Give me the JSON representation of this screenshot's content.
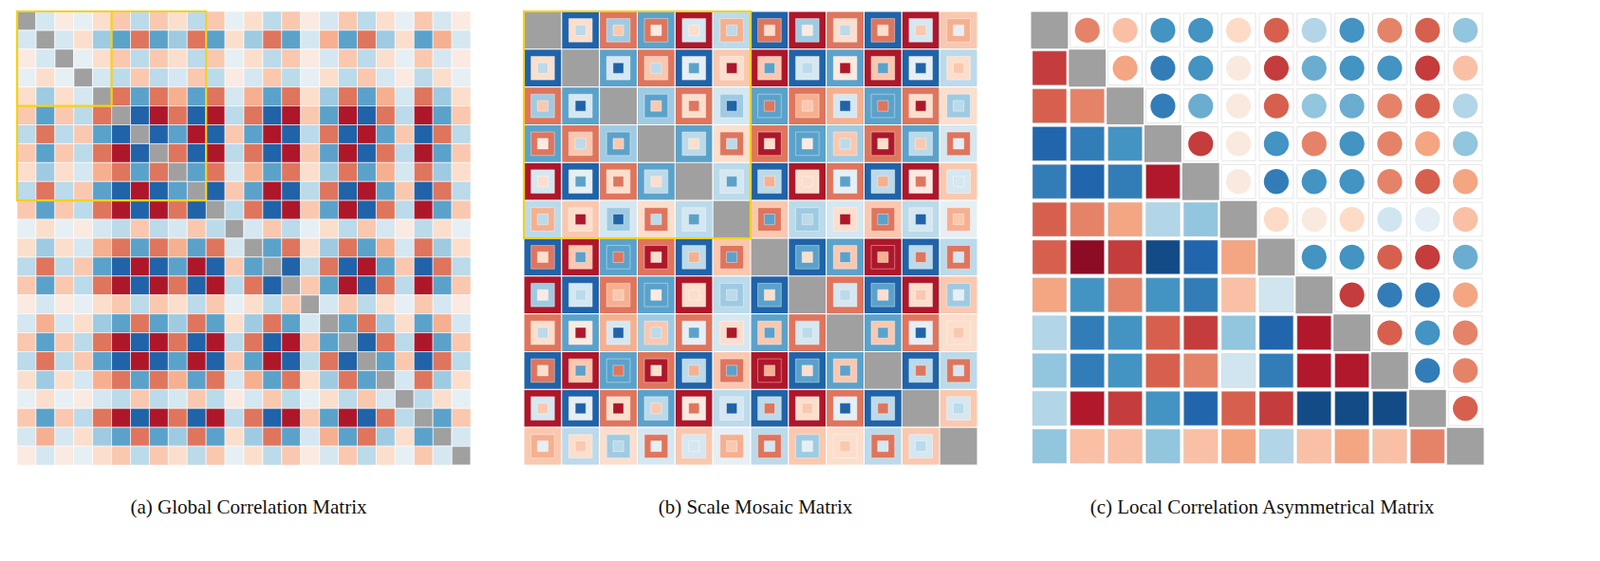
{
  "chart_data": [
    {
      "type": "heatmap",
      "title": "(a) Global Correlation Matrix",
      "tick_labels": false,
      "color_range": [
        -1,
        1
      ],
      "colorscale": [
        "#053061",
        "#2166ac",
        "#4393c3",
        "#92c5de",
        "#d1e5f0",
        "#f7f7f7",
        "#fddbc7",
        "#f4a582",
        "#d6604d",
        "#b2182b",
        "#67001f"
      ],
      "highlights": [
        [
          0,
          4
        ],
        [
          0,
          9
        ]
      ],
      "lower_triangle": [
        [],
        [
          -0.18
        ],
        [
          0.09,
          -0.18
        ],
        [
          -0.09,
          0.18,
          -0.09
        ],
        [
          0.18,
          -0.36,
          0.18,
          -0.18
        ],
        [
          0.27,
          -0.54,
          0.27,
          -0.27,
          0.54
        ],
        [
          -0.27,
          0.54,
          -0.27,
          0.27,
          -0.54,
          -0.81
        ],
        [
          0.27,
          -0.54,
          0.27,
          -0.27,
          0.54,
          0.81,
          -0.81
        ],
        [
          0.18,
          -0.36,
          0.18,
          -0.18,
          0.36,
          0.54,
          -0.54,
          0.54
        ],
        [
          -0.27,
          0.54,
          -0.27,
          0.27,
          -0.54,
          -0.81,
          0.81,
          -0.81,
          -0.54
        ],
        [
          0.27,
          -0.54,
          0.27,
          -0.27,
          0.54,
          0.81,
          -0.81,
          0.81,
          0.54,
          -0.81
        ],
        [
          -0.09,
          0.18,
          -0.09,
          0.09,
          -0.18,
          -0.27,
          0.27,
          -0.27,
          -0.18,
          0.27,
          -0.27
        ],
        [
          0.18,
          -0.36,
          0.18,
          -0.18,
          0.36,
          0.54,
          -0.54,
          0.54,
          0.36,
          -0.54,
          0.54,
          -0.18
        ],
        [
          -0.27,
          0.54,
          -0.27,
          0.27,
          -0.54,
          -0.81,
          0.81,
          -0.81,
          -0.54,
          0.81,
          -0.81,
          0.27,
          -0.54
        ],
        [
          0.27,
          -0.54,
          0.27,
          -0.27,
          0.54,
          0.81,
          -0.81,
          0.81,
          0.54,
          -0.81,
          0.81,
          -0.27,
          0.54,
          -0.81
        ],
        [
          0.09,
          -0.18,
          0.09,
          -0.09,
          0.18,
          0.27,
          -0.27,
          0.27,
          0.18,
          -0.27,
          0.27,
          -0.09,
          0.18,
          -0.27,
          0.27
        ],
        [
          -0.18,
          0.36,
          -0.18,
          0.18,
          -0.36,
          -0.54,
          0.54,
          -0.54,
          -0.36,
          0.54,
          -0.54,
          0.18,
          -0.36,
          0.54,
          -0.54,
          -0.18
        ],
        [
          0.27,
          -0.54,
          0.27,
          -0.27,
          0.54,
          0.81,
          -0.81,
          0.81,
          0.54,
          -0.81,
          0.81,
          -0.27,
          0.54,
          -0.81,
          0.81,
          0.27,
          -0.54
        ],
        [
          -0.27,
          0.54,
          -0.27,
          0.27,
          -0.54,
          -0.81,
          0.81,
          -0.81,
          -0.54,
          0.81,
          -0.81,
          0.27,
          -0.54,
          0.81,
          -0.81,
          -0.27,
          0.54,
          -0.81
        ],
        [
          0.18,
          -0.36,
          0.18,
          -0.18,
          0.36,
          0.54,
          -0.54,
          0.54,
          0.36,
          -0.54,
          0.54,
          -0.18,
          0.36,
          -0.54,
          0.54,
          0.18,
          -0.36,
          0.54,
          -0.54
        ],
        [
          -0.09,
          0.18,
          -0.09,
          0.09,
          -0.18,
          -0.27,
          0.27,
          -0.27,
          -0.18,
          0.27,
          -0.27,
          0.09,
          -0.18,
          0.27,
          -0.27,
          -0.09,
          0.18,
          -0.27,
          0.27,
          -0.18
        ],
        [
          0.27,
          -0.54,
          0.27,
          -0.27,
          0.54,
          0.81,
          -0.81,
          0.81,
          0.54,
          -0.81,
          0.81,
          -0.27,
          0.54,
          -0.81,
          0.81,
          0.27,
          -0.54,
          0.81,
          -0.81,
          0.54,
          -0.27
        ],
        [
          -0.18,
          0.36,
          -0.18,
          0.18,
          -0.36,
          -0.54,
          0.54,
          -0.54,
          -0.36,
          0.54,
          -0.54,
          0.18,
          -0.36,
          0.54,
          -0.54,
          -0.18,
          0.36,
          -0.54,
          0.54,
          -0.36,
          0.18,
          -0.54
        ],
        [
          0.09,
          -0.18,
          0.09,
          -0.09,
          0.18,
          0.27,
          -0.27,
          0.27,
          0.18,
          -0.27,
          0.27,
          -0.09,
          0.18,
          -0.27,
          0.27,
          0.09,
          -0.18,
          0.27,
          -0.27,
          0.18,
          -0.09,
          0.27,
          -0.18
        ]
      ]
    },
    {
      "type": "mosaic",
      "title": "(b) Scale Mosaic Matrix",
      "tick_labels": false,
      "color_range": [
        -1,
        1
      ],
      "colorscale": [
        "#053061",
        "#2166ac",
        "#4393c3",
        "#92c5de",
        "#d1e5f0",
        "#f7f7f7",
        "#fddbc7",
        "#f4a582",
        "#d6604d",
        "#b2182b",
        "#67001f"
      ],
      "highlights": [
        [
          0,
          5
        ]
      ],
      "lower_triangle": [
        [],
        [
          [
            -0.81,
            0.18,
            -0.27
          ]
        ],
        [
          [
            0.54,
            -0.36,
            0.27
          ],
          [
            -0.54,
            -0.18,
            -0.81
          ]
        ],
        [
          [
            -0.54,
            0.54,
            0.09
          ],
          [
            0.54,
            0.27,
            -0.27
          ],
          [
            -0.36,
            -0.54,
            0.27
          ]
        ],
        [
          [
            0.81,
            -0.18,
            0.18
          ],
          [
            -0.81,
            -0.09,
            -0.54
          ],
          [
            0.54,
            0.18,
            0.54
          ],
          [
            -0.54,
            -0.27,
            0.18
          ]
        ],
        [
          [
            -0.27,
            0.36,
            -0.27
          ],
          [
            0.27,
            0.18,
            0.81
          ],
          [
            -0.18,
            -0.36,
            -0.81
          ],
          [
            0.18,
            0.54,
            -0.27
          ],
          [
            -0.27,
            -0.18,
            -0.54
          ]
        ],
        [
          [
            -0.81,
            0.54,
            0.18
          ],
          [
            0.81,
            0.27,
            -0.54
          ],
          [
            -0.54,
            -0.54,
            0.54
          ],
          [
            0.54,
            0.81,
            0.18
          ],
          [
            -0.81,
            -0.27,
            0.36
          ],
          [
            0.27,
            0.54,
            -0.54
          ]
        ],
        [
          [
            0.81,
            -0.36,
            0.09
          ],
          [
            -0.81,
            -0.18,
            -0.27
          ],
          [
            0.54,
            0.36,
            0.27
          ],
          [
            -0.54,
            -0.54,
            0.09
          ],
          [
            0.81,
            0.18,
            0.18
          ],
          [
            -0.27,
            -0.36,
            -0.27
          ],
          [
            -0.81,
            -0.54,
            0.18
          ]
        ],
        [
          [
            0.54,
            0.18,
            -0.27
          ],
          [
            -0.54,
            0.09,
            0.81
          ],
          [
            0.36,
            -0.18,
            -0.81
          ],
          [
            -0.36,
            0.27,
            -0.27
          ],
          [
            0.54,
            -0.09,
            -0.54
          ],
          [
            -0.18,
            0.18,
            0.81
          ],
          [
            -0.54,
            0.27,
            -0.54
          ],
          [
            0.54,
            -0.18,
            -0.27
          ]
        ],
        [
          [
            -0.81,
            0.54,
            0.18
          ],
          [
            0.81,
            0.27,
            -0.54
          ],
          [
            -0.54,
            -0.54,
            0.54
          ],
          [
            0.54,
            0.81,
            0.18
          ],
          [
            -0.81,
            -0.27,
            0.36
          ],
          [
            0.27,
            0.54,
            -0.54
          ],
          [
            0.81,
            0.81,
            0.36
          ],
          [
            -0.81,
            -0.54,
            0.18
          ],
          [
            -0.54,
            0.27,
            -0.54
          ]
        ],
        [
          [
            0.81,
            -0.18,
            0.27
          ],
          [
            -0.81,
            -0.09,
            -0.81
          ],
          [
            0.54,
            0.18,
            0.81
          ],
          [
            -0.54,
            -0.27,
            0.27
          ],
          [
            0.81,
            0.09,
            0.54
          ],
          [
            -0.27,
            -0.18,
            -0.81
          ],
          [
            -0.81,
            -0.27,
            0.54
          ],
          [
            0.81,
            0.18,
            0.27
          ],
          [
            0.54,
            -0.09,
            -0.81
          ],
          [
            -0.81,
            -0.27,
            0.54
          ]
        ],
        [
          [
            0.27,
            0.36,
            -0.09
          ],
          [
            -0.27,
            0.18,
            0.27
          ],
          [
            0.18,
            -0.36,
            -0.27
          ],
          [
            -0.18,
            0.54,
            -0.09
          ],
          [
            0.27,
            -0.18,
            -0.18
          ],
          [
            -0.09,
            0.36,
            0.27
          ],
          [
            -0.27,
            0.54,
            -0.18
          ],
          [
            0.27,
            -0.36,
            -0.09
          ],
          [
            0.18,
            0.18,
            0.27
          ],
          [
            -0.27,
            0.54,
            -0.18
          ],
          [
            0.27,
            -0.18,
            -0.27
          ]
        ]
      ]
    },
    {
      "type": "asymmetric_matrix",
      "title": "(c) Local Correlation Asymmetrical Matrix",
      "tick_labels": false,
      "color_range": [
        -1,
        1
      ],
      "colorscale": [
        "#053061",
        "#2166ac",
        "#4393c3",
        "#92c5de",
        "#d1e5f0",
        "#f7f7f7",
        "#fddbc7",
        "#f4a582",
        "#d6604d",
        "#b2182b",
        "#67001f"
      ],
      "marker": "circle",
      "matrix": [
        [
          null,
          0.5,
          0.3,
          -0.6,
          -0.6,
          0.2,
          0.6,
          -0.3,
          -0.6,
          0.5,
          0.6,
          -0.4
        ],
        [
          0.7,
          null,
          0.4,
          -0.7,
          -0.6,
          0.1,
          0.7,
          -0.5,
          -0.6,
          -0.6,
          0.7,
          0.3
        ],
        [
          0.6,
          0.5,
          null,
          -0.7,
          -0.5,
          0.1,
          0.6,
          -0.4,
          -0.5,
          0.5,
          0.6,
          -0.3
        ],
        [
          -0.8,
          -0.7,
          -0.6,
          null,
          0.7,
          0.1,
          -0.6,
          0.5,
          -0.6,
          0.5,
          0.4,
          -0.4
        ],
        [
          -0.7,
          -0.8,
          -0.7,
          0.8,
          null,
          0.1,
          -0.7,
          -0.6,
          -0.6,
          0.5,
          0.6,
          0.4
        ],
        [
          0.6,
          0.5,
          0.4,
          -0.3,
          -0.4,
          null,
          0.2,
          0.1,
          0.2,
          -0.2,
          -0.1,
          0.3
        ],
        [
          0.6,
          0.9,
          0.7,
          -0.9,
          -0.8,
          0.4,
          null,
          -0.6,
          -0.6,
          0.6,
          0.7,
          -0.5
        ],
        [
          0.4,
          -0.6,
          0.5,
          -0.6,
          -0.7,
          0.3,
          -0.2,
          null,
          0.7,
          -0.7,
          -0.7,
          0.4
        ],
        [
          -0.3,
          -0.7,
          -0.6,
          0.6,
          0.7,
          -0.4,
          -0.8,
          0.8,
          null,
          0.6,
          -0.6,
          0.5
        ],
        [
          -0.4,
          -0.7,
          -0.6,
          0.6,
          0.5,
          -0.2,
          -0.7,
          0.8,
          0.8,
          null,
          -0.7,
          0.5
        ],
        [
          -0.3,
          0.8,
          0.7,
          -0.6,
          -0.8,
          0.6,
          0.7,
          -0.9,
          -0.9,
          -0.9,
          null,
          0.6
        ],
        [
          -0.4,
          0.3,
          0.3,
          -0.4,
          0.3,
          0.4,
          -0.3,
          0.3,
          0.4,
          0.3,
          0.5,
          null
        ]
      ]
    }
  ]
}
